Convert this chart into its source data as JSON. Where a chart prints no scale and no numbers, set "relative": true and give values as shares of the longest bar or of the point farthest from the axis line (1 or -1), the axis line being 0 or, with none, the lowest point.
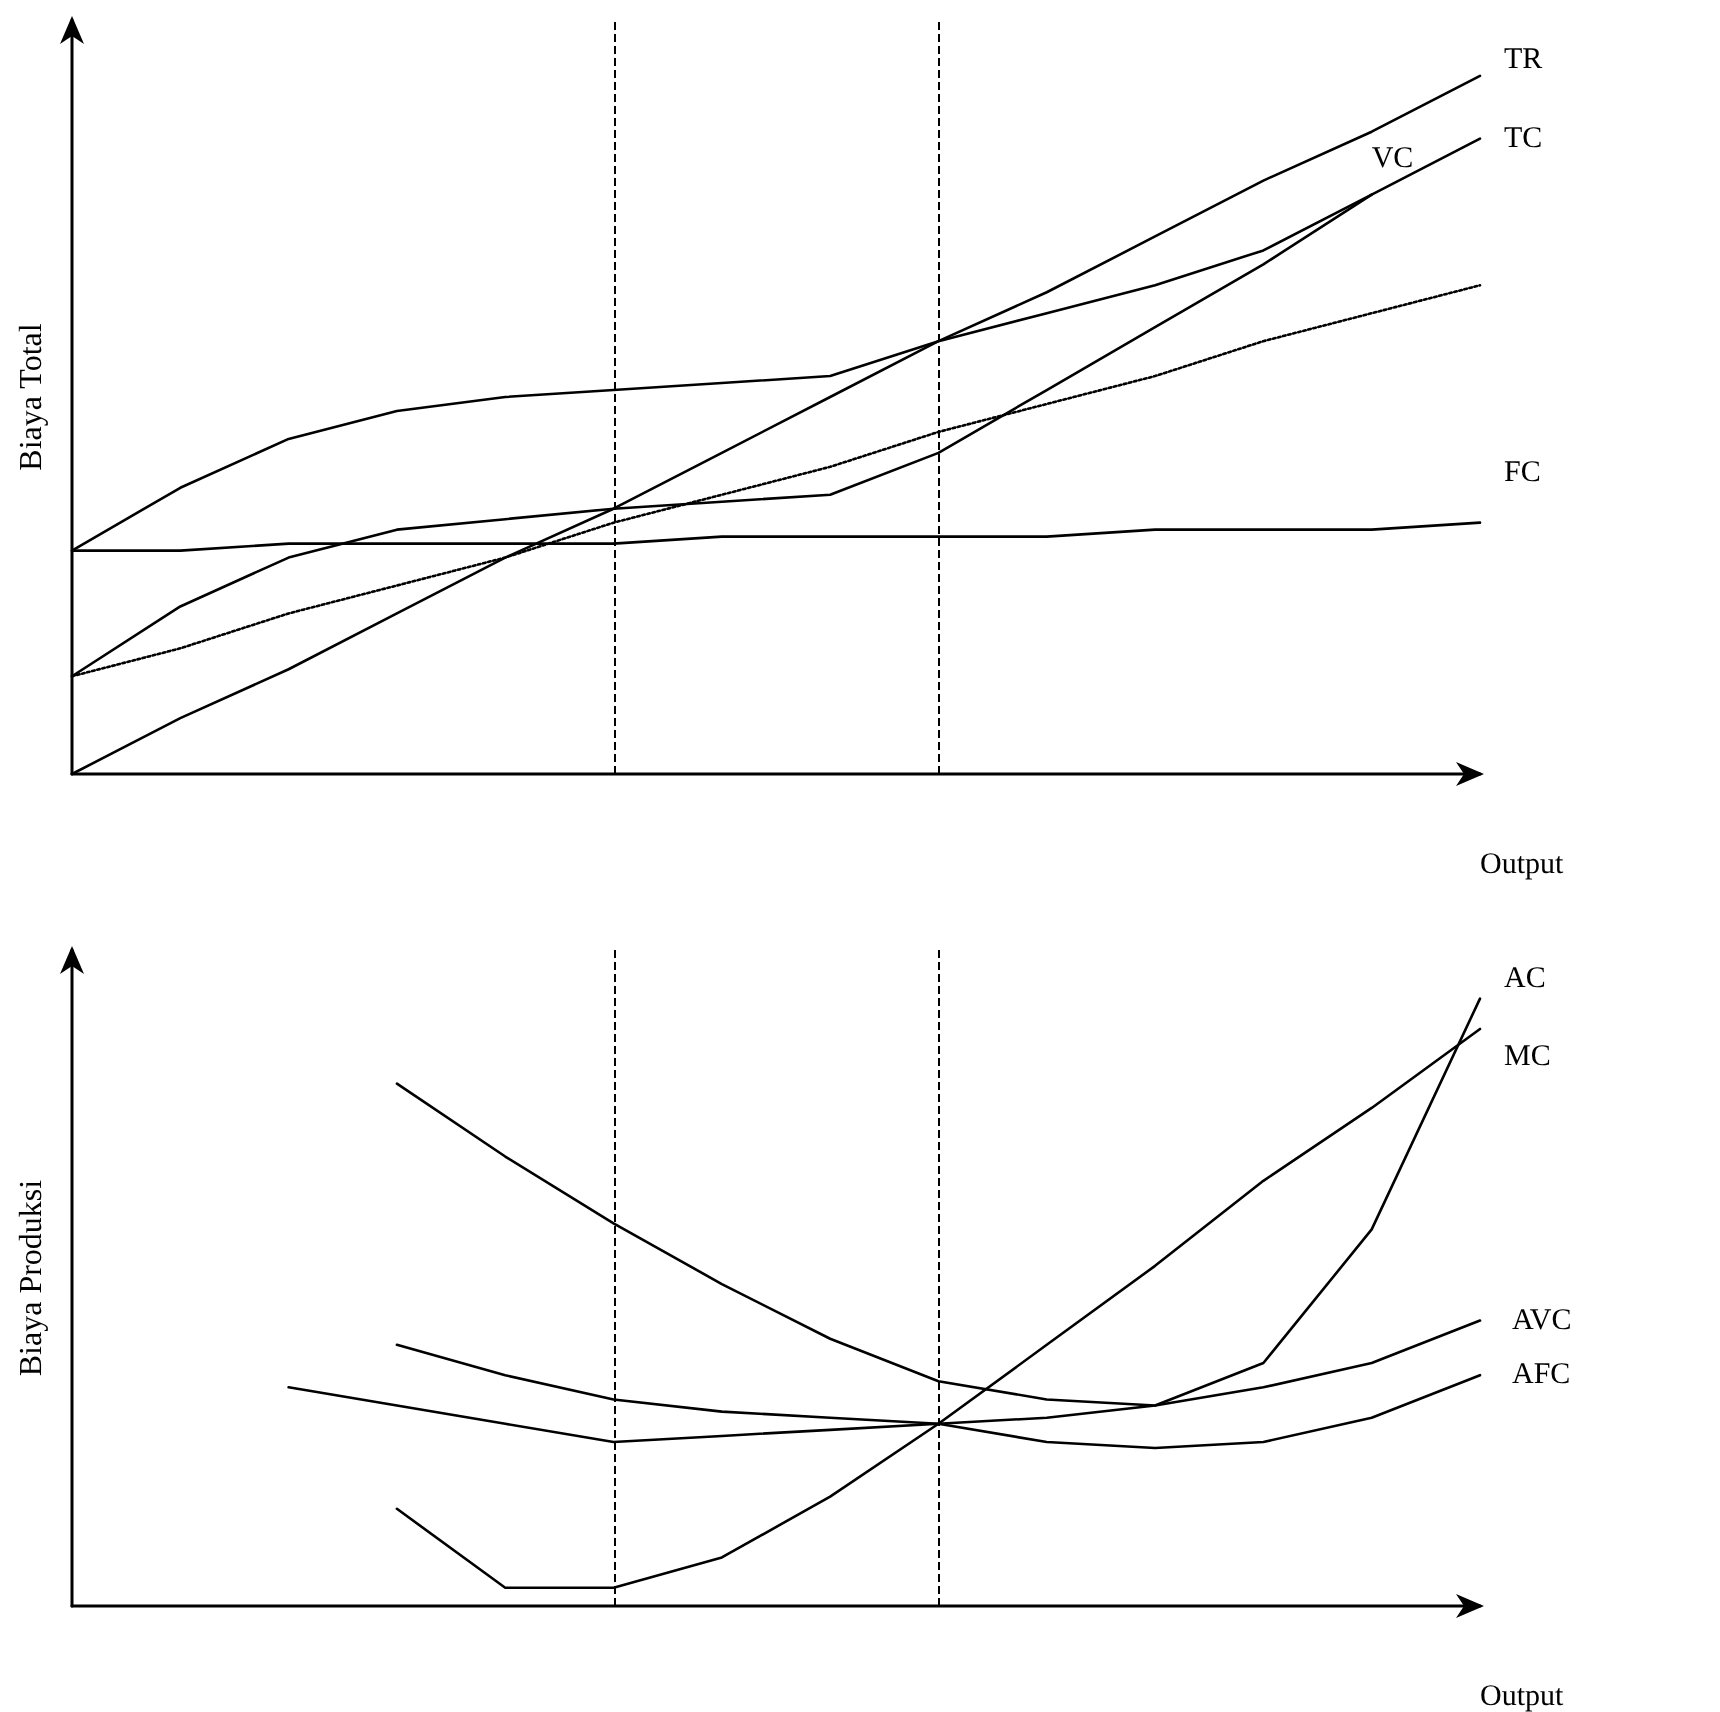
{
  "chart_data": [
    {
      "type": "line",
      "relative": true,
      "ylabel": "Biaya Total",
      "xlabel": "Output",
      "grid": false,
      "legend": false,
      "marker": "none",
      "categories": [
        null,
        null,
        null,
        null,
        null,
        null,
        null,
        null,
        null,
        null,
        null,
        null,
        null,
        null
      ],
      "series": [
        {
          "name": "TR",
          "color": "#000000",
          "values": [
            0,
            0.08,
            0.15,
            0.23,
            0.31,
            0.38,
            0.46,
            0.54,
            0.62,
            0.69,
            0.77,
            0.85,
            0.92,
            1
          ]
        },
        {
          "name": "VC",
          "color": "#000000",
          "values": [
            0.14,
            0.24,
            0.31,
            0.35,
            0.365,
            0.38,
            0.39,
            0.4,
            0.46,
            0.55,
            0.64,
            0.73,
            0.83,
            null
          ]
        },
        {
          "name": "TC",
          "color": "#000000",
          "values": [
            0.32,
            0.41,
            0.48,
            0.52,
            0.54,
            0.55,
            0.56,
            0.57,
            0.62,
            0.66,
            0.7,
            0.75,
            0.83,
            0.91
          ]
        },
        {
          "color": "#000000",
          "line_style": "dotted",
          "values": [
            0.14,
            0.18,
            0.23,
            0.27,
            0.31,
            0.36,
            0.4,
            0.44,
            0.49,
            0.53,
            0.57,
            0.62,
            0.66,
            0.7
          ]
        },
        {
          "name": "FC",
          "color": "#000000",
          "values": [
            0.32,
            0.32,
            0.33,
            0.33,
            0.33,
            0.33,
            0.34,
            0.34,
            0.34,
            0.34,
            0.35,
            0.35,
            0.35,
            0.36
          ]
        }
      ]
    },
    {
      "type": "line",
      "relative": true,
      "ylabel": "Biaya Produksi",
      "xlabel": "Output",
      "grid": false,
      "legend": false,
      "marker": "none",
      "categories": [
        null,
        null,
        null,
        null,
        null,
        null,
        null,
        null,
        null,
        null,
        null,
        null,
        null,
        null
      ],
      "series": [
        {
          "name": "AC",
          "color": "#000000",
          "values": [
            null,
            null,
            null,
            0.86,
            0.74,
            0.63,
            0.53,
            0.44,
            0.37,
            0.34,
            0.33,
            0.4,
            0.62,
            1
          ]
        },
        {
          "name": "MC",
          "color": "#000000",
          "values": [
            null,
            null,
            null,
            0.16,
            0.03,
            0.03,
            0.08,
            0.18,
            0.3,
            0.43,
            0.56,
            0.7,
            0.82,
            0.95
          ]
        },
        {
          "name": "AVC",
          "color": "#000000",
          "values": [
            null,
            null,
            null,
            0.43,
            0.38,
            0.34,
            0.32,
            0.31,
            0.3,
            0.31,
            0.33,
            0.36,
            0.4,
            0.47
          ]
        },
        {
          "name": "AFC",
          "color": "#000000",
          "values": [
            null,
            null,
            0.36,
            0.33,
            0.3,
            0.27,
            0.28,
            0.29,
            0.3,
            0.27,
            0.26,
            0.27,
            0.31,
            0.38
          ]
        }
      ]
    }
  ]
}
